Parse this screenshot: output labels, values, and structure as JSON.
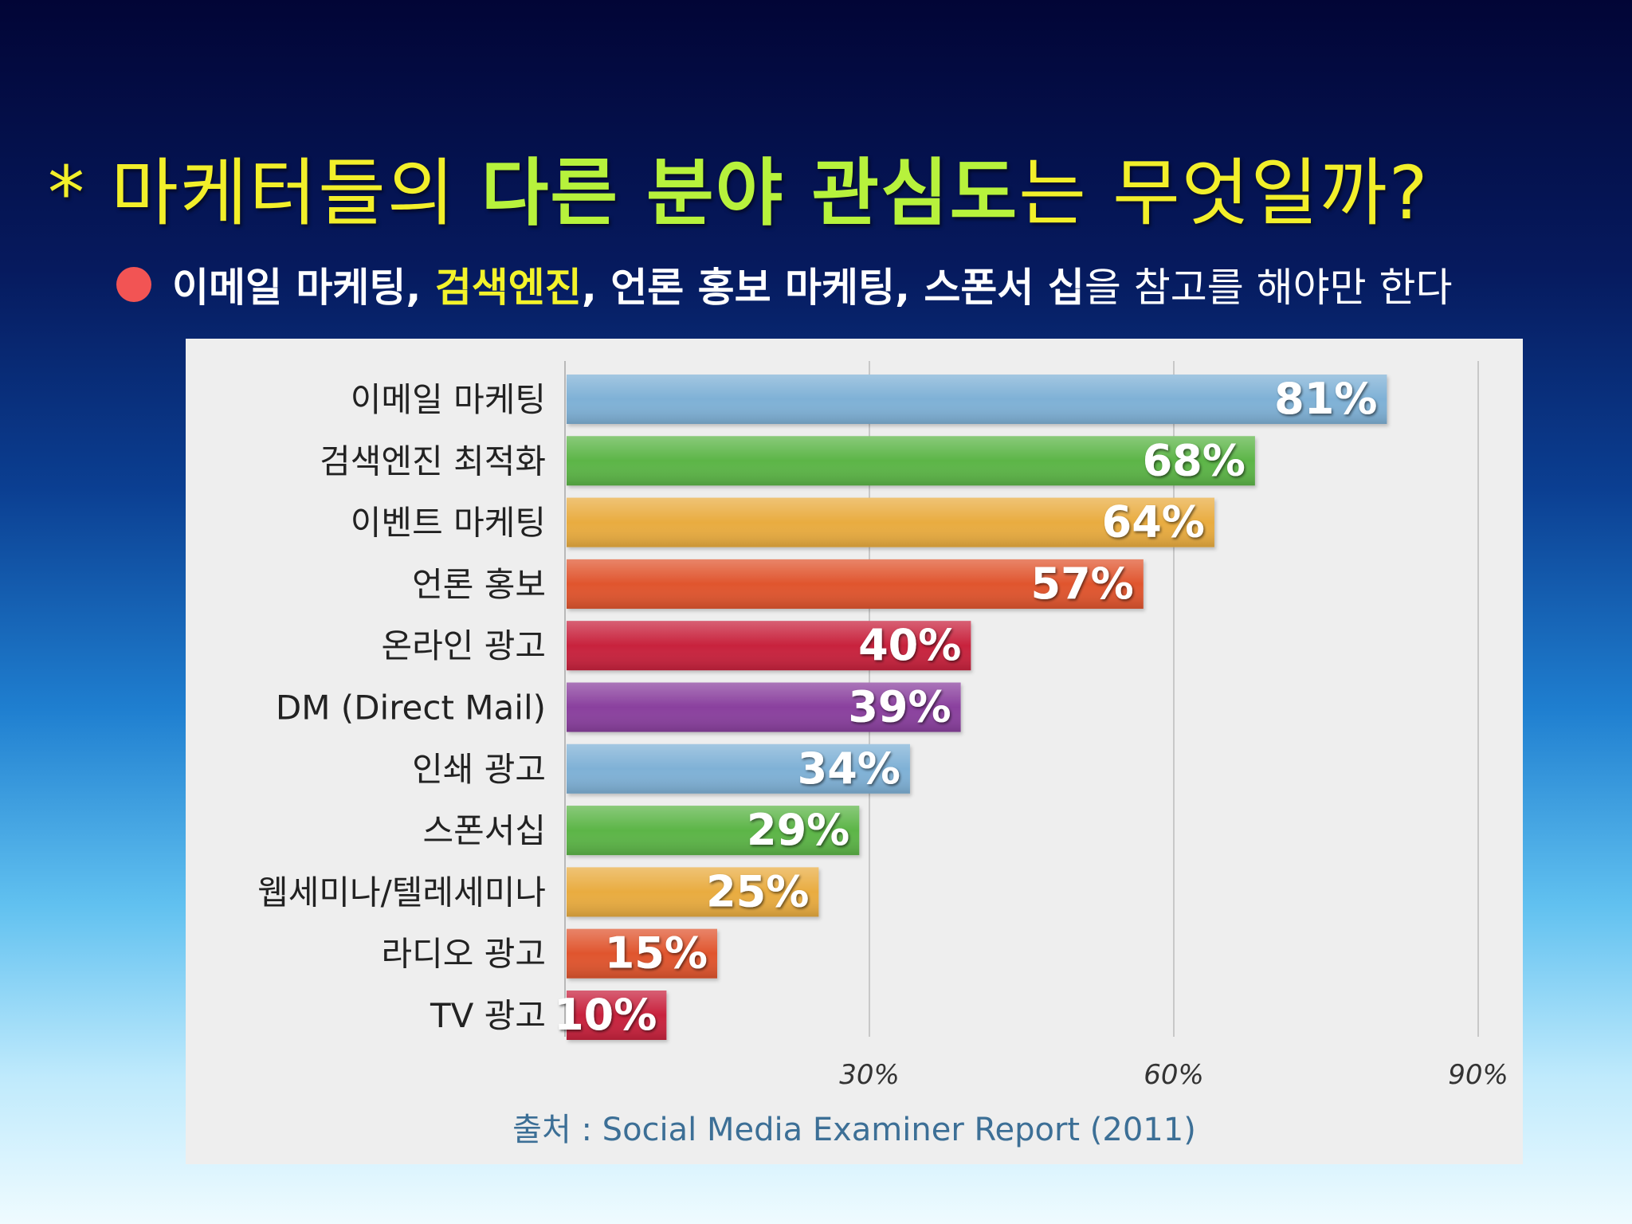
{
  "slide": {
    "title_parts": [
      {
        "text": "* 마케터들의 ",
        "highlight": false
      },
      {
        "text": "다른 분야 관심도",
        "highlight": true
      },
      {
        "text": "는 무엇일까?",
        "highlight": false
      }
    ],
    "bullet_parts": [
      {
        "text": "이메일 마케팅, ",
        "style": "bold"
      },
      {
        "text": "검색엔진",
        "style": "bold-yellow"
      },
      {
        "text": ", 언론 홍보 마케팅, 스폰서 십",
        "style": "bold"
      },
      {
        "text": "을 참고를 해야만 한다",
        "style": "normal"
      }
    ],
    "colors": {
      "title": "#f2ef2a",
      "title_highlight": "#b7f23c",
      "bullet_dot": "#f25454",
      "bullet_highlight": "#f3f32b"
    }
  },
  "chart_data": {
    "type": "bar",
    "orientation": "horizontal",
    "categories": [
      "이메일 마케팅",
      "검색엔진 최적화",
      "이벤트 마케팅",
      "언론 홍보",
      "온라인 광고",
      "DM (Direct Mail)",
      "인쇄 광고",
      "스폰서십",
      "웹세미나/텔레세미나",
      "라디오 광고",
      "TV 광고"
    ],
    "values": [
      81,
      68,
      64,
      57,
      40,
      39,
      34,
      29,
      25,
      15,
      10
    ],
    "value_labels": [
      "81%",
      "68%",
      "64%",
      "57%",
      "40%",
      "39%",
      "34%",
      "29%",
      "25%",
      "15%",
      "10%"
    ],
    "bar_colors": [
      "#7fb1d6",
      "#5cb547",
      "#e9ac3f",
      "#e0552f",
      "#c8203d",
      "#8a3f9e",
      "#7fb1d6",
      "#5cb547",
      "#e9ac3f",
      "#e0552f",
      "#c8203d"
    ],
    "xlim": [
      0,
      90
    ],
    "x_ticks": [
      30,
      60,
      90
    ],
    "x_tick_labels": [
      "30%",
      "60%",
      "90%"
    ],
    "grid": true,
    "source": "출처 : Social Media Examiner Report (2011)"
  }
}
